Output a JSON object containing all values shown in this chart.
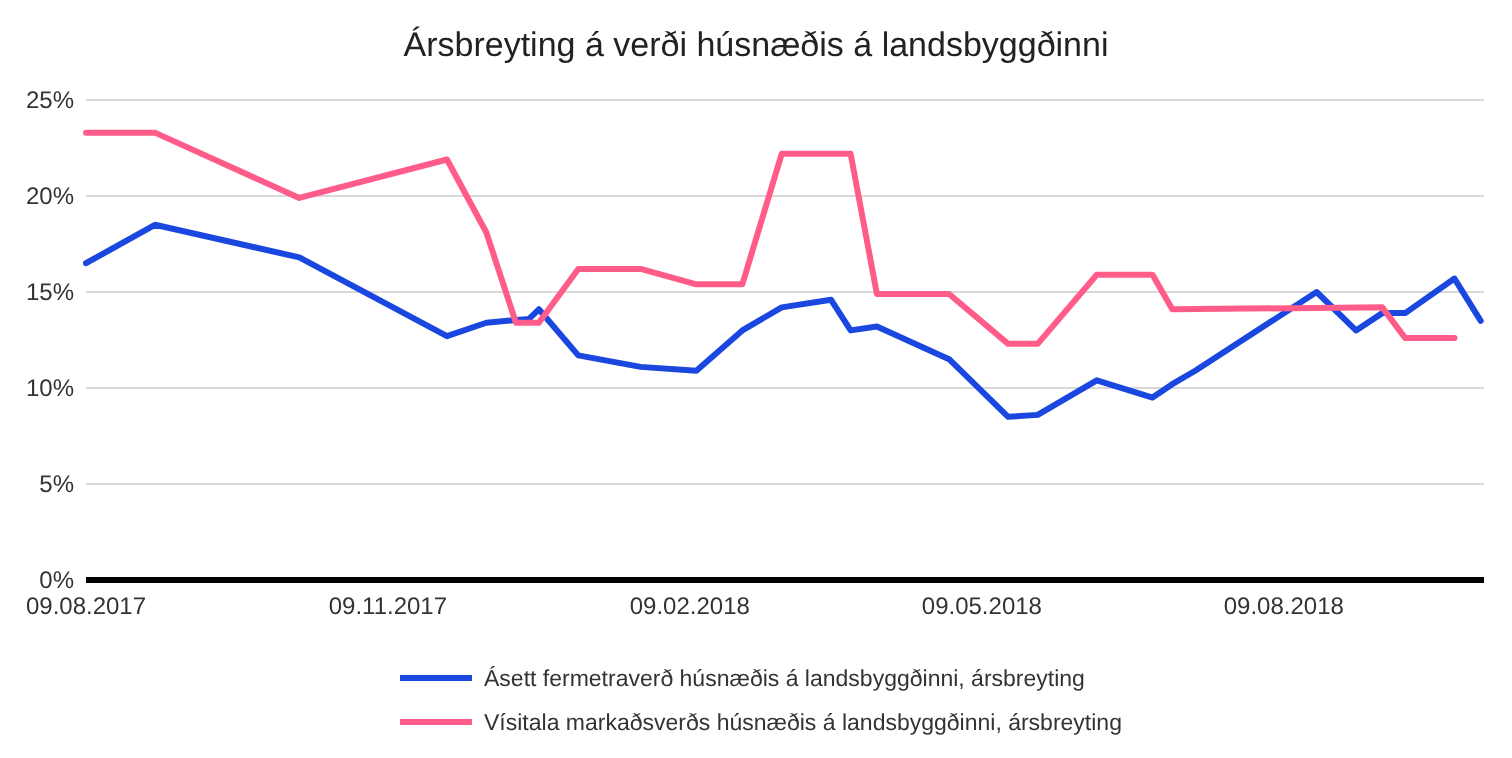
{
  "chart_data": {
    "type": "line",
    "title": "Ársbreyting á verði húsnæðis á landsbyggðinni",
    "xlim": [
      "2017-08-09",
      "2018-10-09"
    ],
    "xticks": [
      {
        "value": "2017-08-09",
        "label": "09.08.2017"
      },
      {
        "value": "2017-11-09",
        "label": "09.11.2017"
      },
      {
        "value": "2018-02-09",
        "label": "09.02.2018"
      },
      {
        "value": "2018-05-09",
        "label": "09.05.2018"
      },
      {
        "value": "2018-08-09",
        "label": "09.08.2018"
      }
    ],
    "ylim": [
      0,
      25
    ],
    "yticks": [
      {
        "value": 0,
        "label": "0%"
      },
      {
        "value": 5,
        "label": "5%"
      },
      {
        "value": 10,
        "label": "10%"
      },
      {
        "value": 15,
        "label": "15%"
      },
      {
        "value": 20,
        "label": "20%"
      },
      {
        "value": 25,
        "label": "25%"
      }
    ],
    "grid": "y",
    "legend": "bottom",
    "marker": "none",
    "line_style": "solid",
    "series": [
      {
        "name": "Ásett fermetraverð húsnæðis á landsbyggðinni, ársbreyting",
        "color": "#1a47e0",
        "x": [
          "2017-08-09",
          "2017-08-30",
          "2017-10-13",
          "2017-11-27",
          "2017-12-09",
          "2017-12-22",
          "2017-12-25",
          "2018-01-06",
          "2018-01-25",
          "2018-02-11",
          "2018-02-25",
          "2018-03-09",
          "2018-03-24",
          "2018-03-30",
          "2018-04-07",
          "2018-04-29",
          "2018-05-17",
          "2018-05-26",
          "2018-06-13",
          "2018-06-30",
          "2018-07-06",
          "2018-07-13",
          "2018-08-19",
          "2018-08-31",
          "2018-09-08",
          "2018-09-15",
          "2018-09-30",
          "2018-10-08"
        ],
        "values": [
          16.5,
          18.5,
          16.8,
          12.7,
          13.4,
          13.6,
          14.1,
          11.7,
          11.1,
          10.9,
          13.0,
          14.2,
          14.6,
          13.0,
          13.2,
          11.5,
          8.5,
          8.6,
          10.4,
          9.5,
          10.2,
          10.9,
          15.0,
          13.0,
          13.9,
          13.9,
          15.7,
          13.5
        ]
      },
      {
        "name": "Vísitala markaðsverðs húsnæðis á landsbyggðinni, ársbreyting",
        "color": "#ff5c8a",
        "x": [
          "2017-08-09",
          "2017-08-30",
          "2017-10-13",
          "2017-11-27",
          "2017-12-09",
          "2017-12-18",
          "2017-12-25",
          "2018-01-06",
          "2018-01-25",
          "2018-02-11",
          "2018-02-25",
          "2018-03-09",
          "2018-03-30",
          "2018-04-07",
          "2018-04-29",
          "2018-05-17",
          "2018-05-26",
          "2018-06-13",
          "2018-06-30",
          "2018-07-06",
          "2018-09-08",
          "2018-09-15",
          "2018-09-30"
        ],
        "values": [
          23.3,
          23.3,
          19.9,
          21.9,
          18.1,
          13.4,
          13.4,
          16.2,
          16.2,
          15.4,
          15.4,
          22.2,
          22.2,
          14.9,
          14.9,
          12.3,
          12.3,
          15.9,
          15.9,
          14.1,
          14.2,
          12.6,
          12.6
        ]
      }
    ]
  }
}
